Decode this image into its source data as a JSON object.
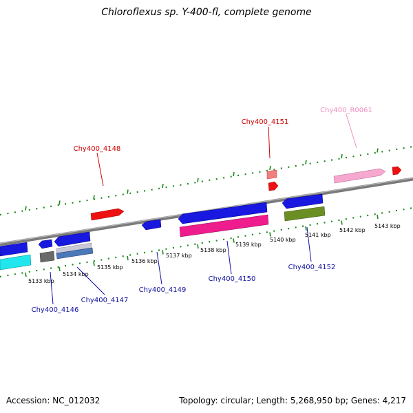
{
  "title": "Chloroflexus sp. Y-400-fl, complete genome",
  "footer": {
    "accession": "Accession: NC_012032",
    "summary": "Topology: circular; Length: 5,268,950 bp; Genes: 4,217"
  },
  "colors": {
    "backbone": "#888888",
    "tick": "#1a8a1a",
    "label_red": "#d40000",
    "label_blue": "#1010a0",
    "label_pink": "#f08cc0"
  },
  "scale": {
    "unit": "kbp",
    "ticks": [
      {
        "label": "5133 kbp"
      },
      {
        "label": "5134 kbp"
      },
      {
        "label": "5135 kbp"
      },
      {
        "label": "5136 kbp"
      },
      {
        "label": "5137 kbp"
      },
      {
        "label": "5138 kbp"
      },
      {
        "label": "5139 kbp"
      },
      {
        "label": "5140 kbp"
      },
      {
        "label": "5141 kbp"
      },
      {
        "label": "5142 kbp"
      },
      {
        "label": "5143 kbp"
      }
    ]
  },
  "gene_labels": [
    {
      "text": "Chy400_4148",
      "color": "red"
    },
    {
      "text": "Chy400_4151",
      "color": "red"
    },
    {
      "text": "Chy400_R0061",
      "color": "pink"
    },
    {
      "text": "Chy400_4146",
      "color": "blue"
    },
    {
      "text": "Chy400_4147",
      "color": "blue"
    },
    {
      "text": "Chy400_4149",
      "color": "blue"
    },
    {
      "text": "Chy400_4150",
      "color": "blue"
    },
    {
      "text": "Chy400_4152",
      "color": "blue"
    }
  ]
}
